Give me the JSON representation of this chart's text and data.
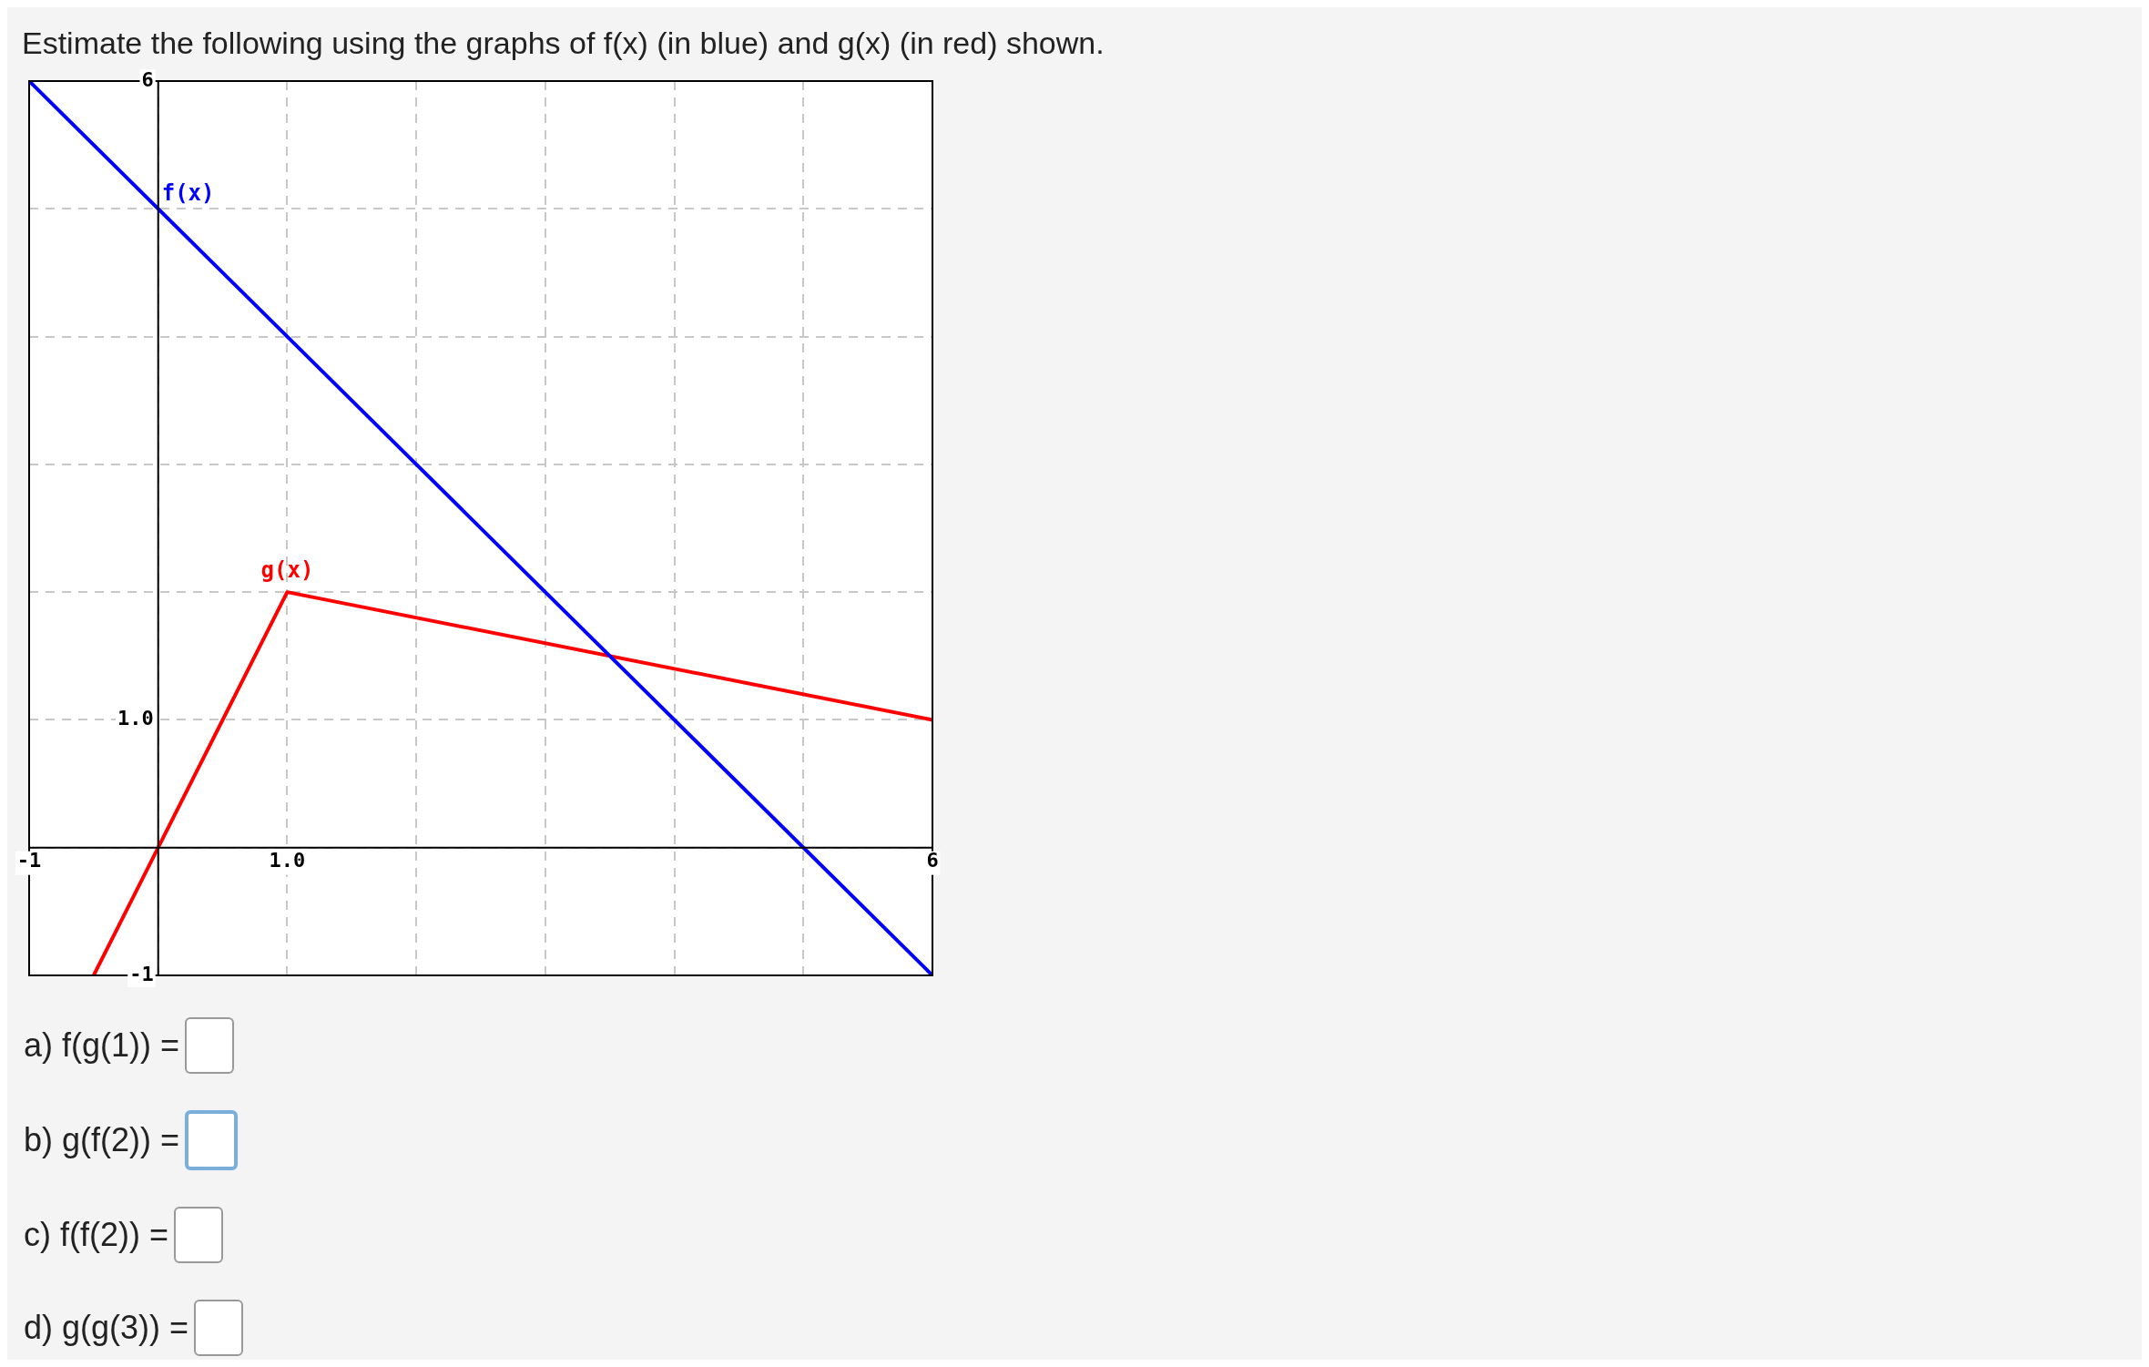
{
  "chart_data": {
    "type": "line",
    "title": "Estimate the following using the graphs of f(x) (in blue) and g(x) (in red) shown.",
    "series": [
      {
        "name": "f(x)",
        "color": "#0000ff",
        "x": [
          -1,
          6
        ],
        "values": [
          6,
          -1
        ]
      },
      {
        "name": "g(x)",
        "color": "#ff0000",
        "x": [
          -0.5,
          0,
          1,
          6
        ],
        "values": [
          -1,
          0,
          2,
          1
        ]
      }
    ],
    "xlim": [
      -1,
      6
    ],
    "ylim": [
      -1,
      6
    ],
    "xticks": [
      -1,
      {
        "value": 0,
        "label": null
      },
      {
        "value": 1,
        "label": "1.0"
      },
      {
        "value": 2,
        "label": null
      },
      {
        "value": 3,
        "label": null
      },
      {
        "value": 4,
        "label": null
      },
      {
        "value": 5,
        "label": null
      },
      6
    ],
    "yticks": [
      -1,
      {
        "value": 0,
        "label": null
      },
      {
        "value": 1,
        "label": "1.0"
      },
      {
        "value": 2,
        "label": null
      },
      {
        "value": 3,
        "label": null
      },
      {
        "value": 4,
        "label": null
      },
      {
        "value": 5,
        "label": null
      },
      6
    ],
    "grid": true,
    "annotations": [
      "a) f(g(1)) =",
      "b) g(f(2)) =",
      "c) f(f(2)) =",
      "d) g(g(3)) ="
    ]
  }
}
